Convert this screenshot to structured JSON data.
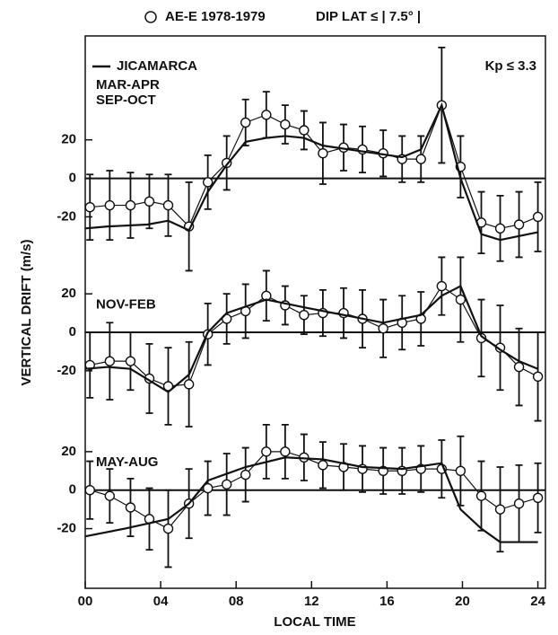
{
  "chart_data": {
    "type": "line",
    "title": "DIP LAT ≤ | 7.5° |",
    "xlabel": "LOCAL TIME",
    "ylabel": "VERTICAL DRIFT (m/s)",
    "annotation": "Kp ≤ 3.3",
    "xlim": [
      0,
      24.4
    ],
    "xticks": [
      {
        "value": 0,
        "label": "00"
      },
      {
        "value": 4,
        "label": "04"
      },
      {
        "value": 8,
        "label": "08"
      },
      12,
      16,
      20,
      24
    ],
    "series": [
      {
        "name": "AE-E 1978-1979",
        "color": "#111111",
        "marker": "circle"
      },
      {
        "name": "JICAMARCA",
        "color": "#111111",
        "marker": "none"
      }
    ],
    "x": [
      0.25,
      1.3,
      2.4,
      3.4,
      4.4,
      5.5,
      6.5,
      7.5,
      8.5,
      9.6,
      10.6,
      11.6,
      12.6,
      13.7,
      14.7,
      15.8,
      16.8,
      17.8,
      18.9,
      19.9,
      21,
      22,
      23,
      24
    ],
    "panels": [
      {
        "labels": [
          "MAR-APR",
          "SEP-OCT"
        ],
        "ylim": [
          -40,
          74
        ],
        "yticks": [
          20,
          0,
          -20
        ],
        "series": [
          {
            "values": [
              -15,
              -14,
              -14,
              -12,
              -14,
              -25,
              -2,
              8,
              29,
              33,
              28,
              25,
              13,
              16,
              15,
              13,
              10,
              10,
              38,
              6,
              -23,
              -26,
              -24,
              -20
            ],
            "errors": [
              17,
              18,
              17,
              14,
              16,
              23,
              14,
              14,
              12,
              12,
              10,
              10,
              16,
              12,
              12,
              12,
              12,
              12,
              30,
              16,
              16,
              17,
              17,
              18
            ]
          },
          {
            "x": [
              0,
              1.2,
              3.3,
              4.4,
              5.5,
              6.5,
              7.5,
              8.5,
              9.6,
              10.6,
              11.6,
              12.6,
              14.7,
              16.8,
              17.8,
              18.9,
              19.9,
              21,
              22,
              23,
              24
            ],
            "values": [
              -26,
              -25,
              -24,
              -22,
              -27,
              -7,
              7,
              19,
              21,
              22,
              21,
              17,
              14,
              11,
              15,
              38,
              0,
              -29,
              -32,
              -30,
              -28
            ]
          }
        ]
      },
      {
        "labels": [
          "NOV-FEB"
        ],
        "ylim": [
          -42,
          40
        ],
        "yticks": [
          20,
          0,
          -20
        ],
        "series": [
          {
            "values": [
              -17,
              -15,
              -15,
              -24,
              -28,
              -27,
              -1,
              7,
              11,
              19,
              14,
              9,
              10,
              10,
              7,
              2,
              5,
              7,
              24,
              17,
              -3,
              -8,
              -18,
              -23
            ],
            "errors": [
              17,
              20,
              15,
              18,
              20,
              22,
              16,
              13,
              14,
              13,
              10,
              10,
              12,
              13,
              15,
              15,
              14,
              14,
              15,
              22,
              20,
              22,
              20,
              23
            ]
          },
          {
            "x": [
              0,
              1.2,
              2.4,
              4.4,
              5.5,
              6.5,
              7.5,
              9.6,
              11.6,
              13.7,
              15.8,
              17.8,
              18.9,
              19.9,
              21,
              22,
              23,
              24
            ],
            "values": [
              -19,
              -18,
              -19,
              -31,
              -22,
              0,
              10,
              17,
              13,
              9,
              5,
              9,
              19,
              24,
              -2,
              -9,
              -15,
              -19
            ]
          }
        ]
      },
      {
        "labels": [
          "MAY-AUG"
        ],
        "ylim": [
          -51,
          40
        ],
        "yticks": [
          20,
          0,
          -20
        ],
        "series": [
          {
            "values": [
              0,
              -3,
              -9,
              -15,
              -20,
              -7,
              1,
              3,
              8,
              20,
              20,
              17,
              13,
              12,
              11,
              10,
              10,
              11,
              11,
              10,
              -3,
              -10,
              -7,
              -4
            ],
            "errors": [
              15,
              14,
              15,
              16,
              20,
              18,
              14,
              16,
              14,
              14,
              14,
              12,
              12,
              12,
              12,
              12,
              12,
              12,
              15,
              18,
              18,
              22,
              20,
              18
            ]
          },
          {
            "x": [
              0,
              2.1,
              4.4,
              5.5,
              6.5,
              8.5,
              10.6,
              12.6,
              14.7,
              16.8,
              18.9,
              19.9,
              21,
              22,
              23,
              24
            ],
            "values": [
              -24,
              -20,
              -15,
              -7,
              5,
              12,
              17,
              16,
              12,
              11,
              14,
              -10,
              -20,
              -27,
              -27,
              -27
            ]
          }
        ]
      }
    ]
  }
}
